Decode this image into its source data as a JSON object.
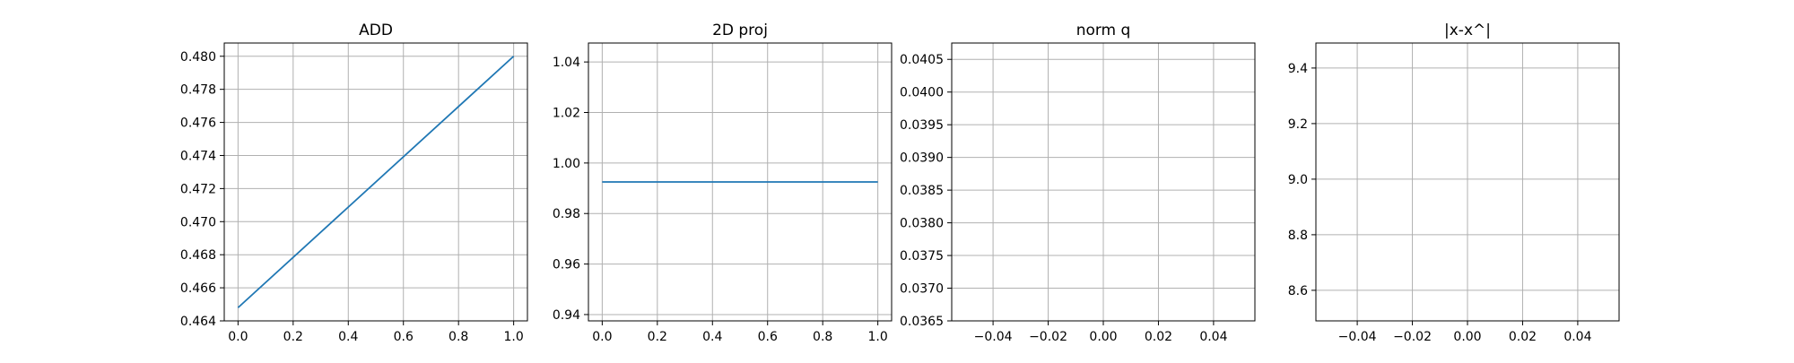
{
  "chart_data": [
    {
      "type": "line",
      "title": "ADD",
      "xlabel": "",
      "ylabel": "",
      "xlim": [
        -0.05,
        1.05
      ],
      "ylim": [
        0.464,
        0.4808
      ],
      "xticks": [
        0.0,
        0.2,
        0.4,
        0.6,
        0.8,
        1.0
      ],
      "xtick_labels": [
        "0.0",
        "0.2",
        "0.4",
        "0.6",
        "0.8",
        "1.0"
      ],
      "yticks": [
        0.464,
        0.466,
        0.468,
        0.47,
        0.472,
        0.474,
        0.476,
        0.478,
        0.48
      ],
      "ytick_labels": [
        "0.464",
        "0.466",
        "0.468",
        "0.470",
        "0.472",
        "0.474",
        "0.476",
        "0.478",
        "0.480"
      ],
      "grid": true,
      "series": [
        {
          "x": [
            0.0,
            1.0
          ],
          "y": [
            0.4648,
            0.48
          ],
          "color": "#1f77b4"
        }
      ]
    },
    {
      "type": "line",
      "title": "2D proj",
      "xlabel": "",
      "ylabel": "",
      "xlim": [
        -0.05,
        1.05
      ],
      "ylim": [
        0.9375,
        1.0475
      ],
      "xticks": [
        0.0,
        0.2,
        0.4,
        0.6,
        0.8,
        1.0
      ],
      "xtick_labels": [
        "0.0",
        "0.2",
        "0.4",
        "0.6",
        "0.8",
        "1.0"
      ],
      "yticks": [
        0.94,
        0.96,
        0.98,
        1.0,
        1.02,
        1.04
      ],
      "ytick_labels": [
        "0.94",
        "0.96",
        "0.98",
        "1.00",
        "1.02",
        "1.04"
      ],
      "grid": true,
      "series": [
        {
          "x": [
            0.0,
            1.0
          ],
          "y": [
            0.9925,
            0.9925
          ],
          "color": "#1f77b4"
        }
      ]
    },
    {
      "type": "line",
      "title": "norm q",
      "xlabel": "",
      "ylabel": "",
      "xlim": [
        -0.055,
        0.055
      ],
      "ylim": [
        0.0365,
        0.04075
      ],
      "xticks": [
        -0.04,
        -0.02,
        0.0,
        0.02,
        0.04
      ],
      "xtick_labels": [
        "−0.04",
        "−0.02",
        "0.00",
        "0.02",
        "0.04"
      ],
      "yticks": [
        0.0365,
        0.037,
        0.0375,
        0.038,
        0.0385,
        0.039,
        0.0395,
        0.04,
        0.0405
      ],
      "ytick_labels": [
        "0.0365",
        "0.0370",
        "0.0375",
        "0.0380",
        "0.0385",
        "0.0390",
        "0.0395",
        "0.0400",
        "0.0405"
      ],
      "grid": true,
      "series": []
    },
    {
      "type": "line",
      "title": "|x-x^|",
      "xlabel": "",
      "ylabel": "",
      "xlim": [
        -0.055,
        0.055
      ],
      "ylim": [
        8.49,
        9.49
      ],
      "xticks": [
        -0.04,
        -0.02,
        0.0,
        0.02,
        0.04
      ],
      "xtick_labels": [
        "−0.04",
        "−0.02",
        "0.00",
        "0.02",
        "0.04"
      ],
      "yticks": [
        8.6,
        8.8,
        9.0,
        9.2,
        9.4
      ],
      "ytick_labels": [
        "8.6",
        "8.8",
        "9.0",
        "9.2",
        "9.4"
      ],
      "grid": true,
      "series": []
    }
  ]
}
